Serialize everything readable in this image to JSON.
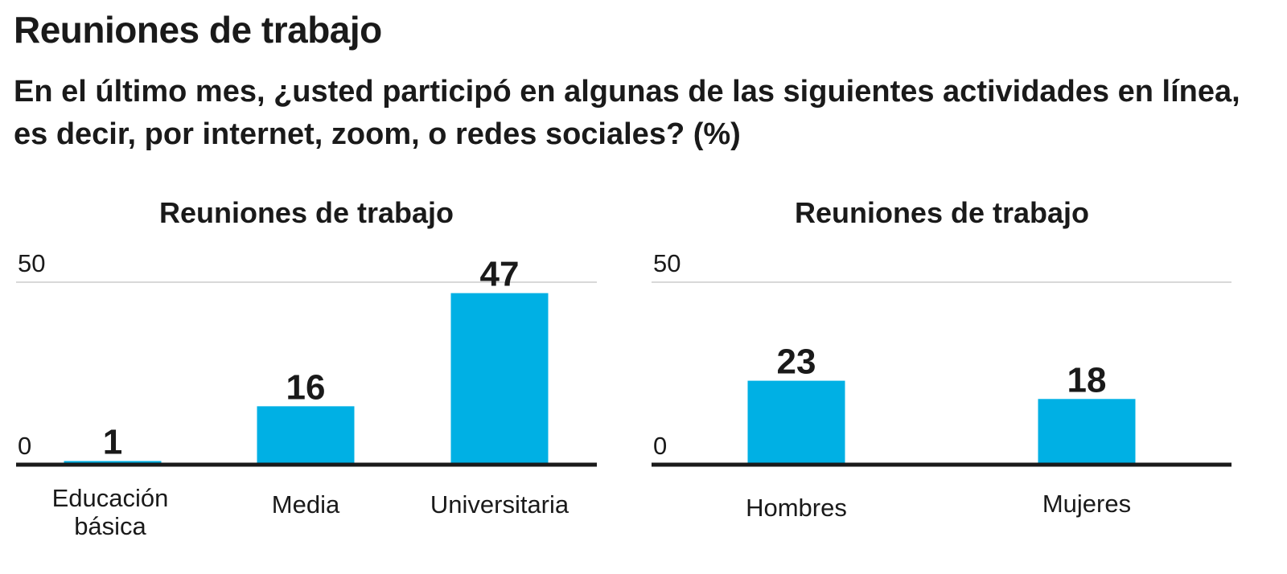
{
  "title": "Reuniones de trabajo",
  "subtitle": "En el último mes, ¿usted participó en algunas de las siguientes actividades en línea, es decir, por internet, zoom, o redes sociales? (%)",
  "colors": {
    "bar": "#00b0e4",
    "axis": "#1a1a1a",
    "grid": "#cccccc",
    "text": "#1a1a1a"
  },
  "chart_data": [
    {
      "type": "bar",
      "title": "Reuniones de trabajo",
      "categories": [
        [
          "Educación",
          "básica"
        ],
        [
          "Media"
        ],
        [
          "Universitaria"
        ]
      ],
      "values": [
        1,
        16,
        47
      ],
      "ylim": [
        0,
        50
      ],
      "yticks": [
        0,
        50
      ],
      "xlabel": "",
      "ylabel": "",
      "grid": true,
      "legend": "none"
    },
    {
      "type": "bar",
      "title": "Reuniones de trabajo",
      "categories": [
        [
          "Hombres"
        ],
        [
          "Mujeres"
        ]
      ],
      "values": [
        23,
        18
      ],
      "ylim": [
        0,
        50
      ],
      "yticks": [
        0,
        50
      ],
      "xlabel": "",
      "ylabel": "",
      "grid": true,
      "legend": "none"
    }
  ]
}
